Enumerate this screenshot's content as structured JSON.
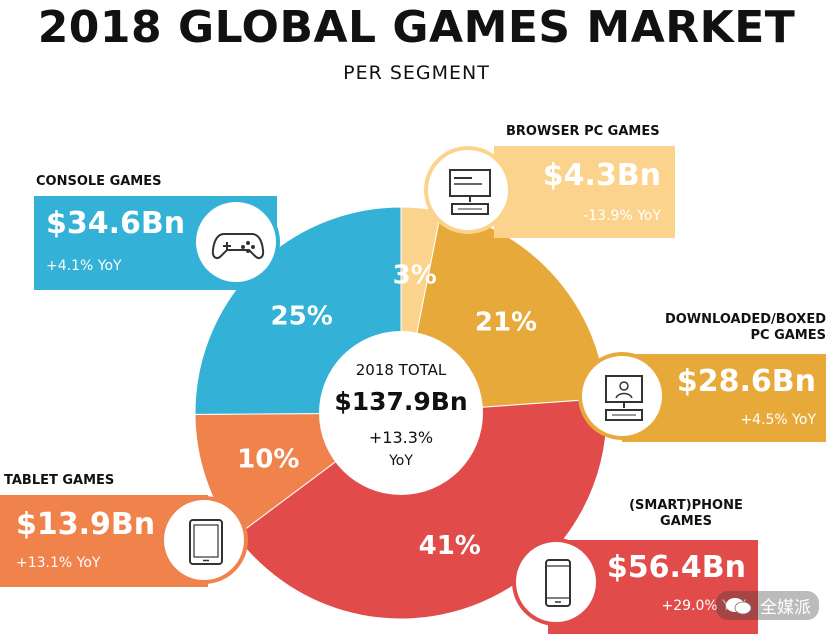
{
  "header": {
    "title": "2018 GLOBAL GAMES MARKET",
    "subtitle": "PER SEGMENT"
  },
  "center": {
    "label": "2018 TOTAL",
    "total": "$137.9Bn",
    "growth": "+13.3%",
    "growth_unit": "YoY"
  },
  "segments": {
    "browser": {
      "name": "BROWSER PC GAMES",
      "value": "$4.3Bn",
      "yoy": "-13.9% YoY",
      "icon": "monitor-keyboard-icon"
    },
    "console": {
      "name": "CONSOLE GAMES",
      "value": "$34.6Bn",
      "yoy": "+4.1% YoY",
      "icon": "gamepad-icon"
    },
    "downloaded": {
      "name_line1": "DOWNLOADED/BOXED",
      "name_line2": "PC GAMES",
      "value": "$28.6Bn",
      "yoy": "+4.5% YoY",
      "icon": "pc-icon"
    },
    "tablet": {
      "name": "TABLET GAMES",
      "value": "$13.9Bn",
      "yoy": "+13.1% YoY",
      "icon": "tablet-icon"
    },
    "phone": {
      "name_line1": "(SMART)PHONE",
      "name_line2": "GAMES",
      "value": "$56.4Bn",
      "yoy": "+29.0% YoY",
      "icon": "smartphone-icon"
    }
  },
  "watermark": {
    "text": "全媒派"
  },
  "chart_data": {
    "type": "pie",
    "title": "2018 GLOBAL GAMES MARKET",
    "subtitle": "PER SEGMENT",
    "unit": "$Bn",
    "slices": [
      {
        "name": "BROWSER PC GAMES",
        "value": 4.3,
        "percent": 3,
        "label": "3%",
        "color": "#fbd38d"
      },
      {
        "name": "DOWNLOADED/BOXED PC GAMES",
        "value": 28.6,
        "percent": 21,
        "label": "21%",
        "color": "#e8a93b"
      },
      {
        "name": "(SMART)PHONE GAMES",
        "value": 56.4,
        "percent": 41,
        "label": "41%",
        "color": "#e14b4a"
      },
      {
        "name": "TABLET GAMES",
        "value": 13.9,
        "percent": 10,
        "label": "10%",
        "color": "#f0834c"
      },
      {
        "name": "CONSOLE GAMES",
        "value": 34.6,
        "percent": 25,
        "label": "25%",
        "color": "#33b1d6"
      }
    ],
    "total": 137.9
  }
}
